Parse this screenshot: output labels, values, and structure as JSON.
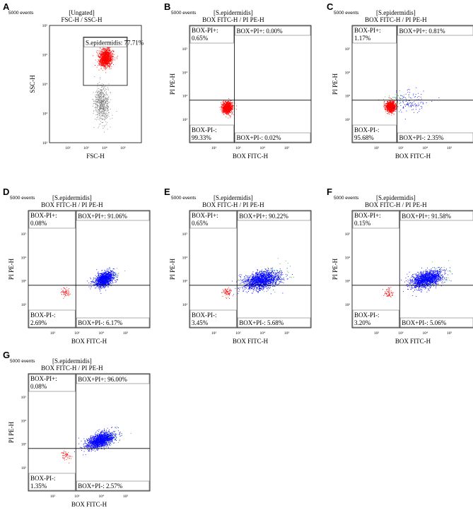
{
  "chart_data": [
    {
      "panel": "A",
      "type": "scatter",
      "events": "5000 events",
      "title1": "[Ungated]",
      "title2": "FSC-H / SSC-H",
      "xlabel": "FSC-H",
      "ylabel": "SSC-H",
      "xlim": [
        10,
        1000000
      ],
      "ylim": [
        100,
        1000000
      ],
      "log": true,
      "xticks": [
        {
          "v": 100,
          "t": "10²"
        },
        {
          "v": 1000,
          "t": "10³"
        },
        {
          "v": 10000,
          "t": "10⁴"
        },
        {
          "v": 100000,
          "t": "10⁵"
        }
      ],
      "yticks": [
        {
          "v": 100,
          "t": "10²"
        },
        {
          "v": 1000,
          "t": "10³"
        },
        {
          "v": 10000,
          "t": "10⁴"
        },
        {
          "v": 100000,
          "t": "10⁵"
        },
        {
          "v": 1000000,
          "t": "10⁶"
        }
      ],
      "gate": {
        "label": "S.epidermidis: 77.71%",
        "x": [
          700,
          170000
        ],
        "y": [
          9000,
          400000
        ]
      },
      "clusters": [
        {
          "color": "#ff0000",
          "n": 1200,
          "cx": 11000,
          "cy": 80000,
          "sx": 0.18,
          "sy": 0.15,
          "rot": 0.5
        },
        {
          "color": "#7f7f7f",
          "n": 600,
          "cx": 7000,
          "cy": 2200,
          "sx": 0.2,
          "sy": 0.3,
          "rot": 0.2
        }
      ]
    },
    {
      "panel": "B",
      "type": "scatter",
      "events": "5000 events",
      "title1": "[S.epidermidis]",
      "title2": "BOX FITC-H / PI PE-H",
      "xlabel": "BOX FITC-H",
      "ylabel": "PI PE-H",
      "xlim": [
        10,
        1000000
      ],
      "ylim": [
        10,
        1000000
      ],
      "log": true,
      "xticks": [
        {
          "v": 100,
          "t": "10²"
        },
        {
          "v": 1000,
          "t": "10³"
        },
        {
          "v": 10000,
          "t": "10⁴"
        },
        {
          "v": 100000,
          "t": "10⁵"
        }
      ],
      "yticks": [
        {
          "v": 100,
          "t": "10²"
        },
        {
          "v": 1000,
          "t": "10³"
        },
        {
          "v": 10000,
          "t": "10⁴"
        },
        {
          "v": 100000,
          "t": "10⁵"
        }
      ],
      "quad": {
        "x": 700,
        "y": 650
      },
      "quadrants": {
        "ul": "BOX-PI+:\n0.65%",
        "ur": "BOX+PI+: 0.00%",
        "ll": "BOX-PI-:\n99.33%",
        "lr": "BOX+PI-: 0.02%"
      },
      "clusters": [
        {
          "color": "#ff0000",
          "n": 1100,
          "cx": 350,
          "cy": 320,
          "sx": 0.1,
          "sy": 0.12,
          "rot": 0
        }
      ]
    },
    {
      "panel": "C",
      "type": "scatter",
      "events": "5000 events",
      "title1": "[S.epidermidis]",
      "title2": "BOX FITC-H / PI PE-H",
      "xlabel": "BOX FITC-H",
      "ylabel": "PI PE-H",
      "xlim": [
        10,
        1000000
      ],
      "ylim": [
        10,
        1000000
      ],
      "log": true,
      "xticks": [
        {
          "v": 100,
          "t": "10²"
        },
        {
          "v": 1000,
          "t": "10³"
        },
        {
          "v": 10000,
          "t": "10⁴"
        },
        {
          "v": 100000,
          "t": "10⁵"
        }
      ],
      "yticks": [
        {
          "v": 100,
          "t": "10²"
        },
        {
          "v": 1000,
          "t": "10³"
        },
        {
          "v": 10000,
          "t": "10⁴"
        },
        {
          "v": 100000,
          "t": "10⁵"
        }
      ],
      "quad": {
        "x": 700,
        "y": 650
      },
      "quadrants": {
        "ul": "BOX-PI+:\n1.17%",
        "ur": "BOX+PI+: 0.81%",
        "ll": "BOX-PI-:\n95.68%",
        "lr": "BOX+PI-: 2.35%"
      },
      "clusters": [
        {
          "color": "#ff0000",
          "n": 1000,
          "cx": 380,
          "cy": 350,
          "sx": 0.1,
          "sy": 0.11,
          "rot": 0
        },
        {
          "color": "#0000ff",
          "n": 120,
          "cx": 2500,
          "cy": 550,
          "sx": 0.35,
          "sy": 0.25,
          "rot": 0
        },
        {
          "color": "#22bb22",
          "n": 30,
          "cx": 600,
          "cy": 750,
          "sx": 0.3,
          "sy": 0.15,
          "rot": 0
        }
      ]
    },
    {
      "panel": "D",
      "type": "scatter",
      "events": "5000 events",
      "title1": "[S.epidermidis]",
      "title2": "BOX FITC-H / PI PE-H",
      "xlabel": "BOX FITC-H",
      "ylabel": "PI PE-H",
      "xlim": [
        10,
        1000000
      ],
      "ylim": [
        10,
        1000000
      ],
      "log": true,
      "xticks": [
        {
          "v": 100,
          "t": "10²"
        },
        {
          "v": 1000,
          "t": "10³"
        },
        {
          "v": 10000,
          "t": "10⁴"
        },
        {
          "v": 100000,
          "t": "10⁵"
        }
      ],
      "yticks": [
        {
          "v": 100,
          "t": "10²"
        },
        {
          "v": 1000,
          "t": "10³"
        },
        {
          "v": 10000,
          "t": "10⁴"
        },
        {
          "v": 100000,
          "t": "10⁵"
        }
      ],
      "quad": {
        "x": 900,
        "y": 650
      },
      "quadrants": {
        "ul": "BOX-PI+:\n0.08%",
        "ur": "BOX+PI+: 91.06%",
        "ll": "BOX-PI-:\n2.69%",
        "lr": "BOX+PI-: 6.17%"
      },
      "clusters": [
        {
          "color": "#0000ff",
          "n": 1300,
          "cx": 13000,
          "cy": 1200,
          "sx": 0.22,
          "sy": 0.14,
          "rot": 0.55
        },
        {
          "color": "#ff0000",
          "n": 60,
          "cx": 330,
          "cy": 330,
          "sx": 0.1,
          "sy": 0.1,
          "rot": 0
        },
        {
          "color": "#22bb22",
          "n": 20,
          "cx": 20000,
          "cy": 1800,
          "sx": 0.4,
          "sy": 0.2,
          "rot": 0.3
        }
      ]
    },
    {
      "panel": "E",
      "type": "scatter",
      "events": "5000 events",
      "title1": "[S.epidermidis]",
      "title2": "BOX FITC-H / PI PE-H",
      "xlabel": "BOX FITC-H",
      "ylabel": "PI PE-H",
      "xlim": [
        10,
        1000000
      ],
      "ylim": [
        10,
        1000000
      ],
      "log": true,
      "xticks": [
        {
          "v": 100,
          "t": "10²"
        },
        {
          "v": 1000,
          "t": "10³"
        },
        {
          "v": 10000,
          "t": "10⁴"
        },
        {
          "v": 100000,
          "t": "10⁵"
        }
      ],
      "yticks": [
        {
          "v": 100,
          "t": "10²"
        },
        {
          "v": 1000,
          "t": "10³"
        },
        {
          "v": 10000,
          "t": "10⁴"
        },
        {
          "v": 100000,
          "t": "10⁵"
        }
      ],
      "quad": {
        "x": 900,
        "y": 650
      },
      "quadrants": {
        "ul": "BOX-PI+:\n0.65%",
        "ur": "BOX+PI+: 90.22%",
        "ll": "BOX-PI-:\n3.45%",
        "lr": "BOX+PI-: 5.68%"
      },
      "clusters": [
        {
          "color": "#0000ff",
          "n": 1600,
          "cx": 9000,
          "cy": 1100,
          "sx": 0.38,
          "sy": 0.18,
          "rot": 0.25
        },
        {
          "color": "#ff0000",
          "n": 70,
          "cx": 330,
          "cy": 330,
          "sx": 0.1,
          "sy": 0.1,
          "rot": 0
        },
        {
          "color": "#22bb22",
          "n": 40,
          "cx": 30000,
          "cy": 1700,
          "sx": 0.45,
          "sy": 0.25,
          "rot": 0.2
        }
      ]
    },
    {
      "panel": "F",
      "type": "scatter",
      "events": "5000 events",
      "title1": "[S.epidermidis]",
      "title2": "BOX FITC-H / PI PE-H",
      "xlabel": "BOX FITC-H",
      "ylabel": "PI PE-H",
      "xlim": [
        10,
        1000000
      ],
      "ylim": [
        10,
        1000000
      ],
      "log": true,
      "xticks": [
        {
          "v": 100,
          "t": "10²"
        },
        {
          "v": 1000,
          "t": "10³"
        },
        {
          "v": 10000,
          "t": "10⁴"
        },
        {
          "v": 100000,
          "t": "10⁵"
        }
      ],
      "yticks": [
        {
          "v": 100,
          "t": "10²"
        },
        {
          "v": 1000,
          "t": "10³"
        },
        {
          "v": 10000,
          "t": "10⁴"
        },
        {
          "v": 100000,
          "t": "10⁵"
        }
      ],
      "quad": {
        "x": 900,
        "y": 650
      },
      "quadrants": {
        "ul": "BOX-PI+:\n0.15%",
        "ur": "BOX+PI+: 91.58%",
        "ll": "BOX-PI-:\n3.20%",
        "lr": "BOX+PI-: 5.06%"
      },
      "clusters": [
        {
          "color": "#0000ff",
          "n": 1600,
          "cx": 11000,
          "cy": 1200,
          "sx": 0.34,
          "sy": 0.16,
          "rot": 0.3
        },
        {
          "color": "#ff0000",
          "n": 60,
          "cx": 330,
          "cy": 330,
          "sx": 0.1,
          "sy": 0.1,
          "rot": 0
        },
        {
          "color": "#22bb22",
          "n": 30,
          "cx": 40000,
          "cy": 2000,
          "sx": 0.4,
          "sy": 0.25,
          "rot": 0.3
        }
      ]
    },
    {
      "panel": "G",
      "type": "scatter",
      "events": "5000 events",
      "title1": "[S.epidermidis]",
      "title2": "BOX FITC-H / PI PE-H",
      "xlabel": "BOX FITC-H",
      "ylabel": "PI PE-H",
      "xlim": [
        10,
        1000000
      ],
      "ylim": [
        10,
        1000000
      ],
      "log": true,
      "xticks": [
        {
          "v": 100,
          "t": "10²"
        },
        {
          "v": 1000,
          "t": "10³"
        },
        {
          "v": 10000,
          "t": "10⁴"
        },
        {
          "v": 100000,
          "t": "10⁵"
        }
      ],
      "yticks": [
        {
          "v": 100,
          "t": "10²"
        },
        {
          "v": 1000,
          "t": "10³"
        },
        {
          "v": 10000,
          "t": "10⁴"
        },
        {
          "v": 100000,
          "t": "10⁵"
        }
      ],
      "quad": {
        "x": 900,
        "y": 650
      },
      "quadrants": {
        "ul": "BOX-PI+:\n0.08%",
        "ur": "BOX+PI+: 96.00%",
        "ll": "BOX-PI-:\n1.35%",
        "lr": "BOX+PI-: 2.57%"
      },
      "clusters": [
        {
          "color": "#0000ff",
          "n": 1600,
          "cx": 9000,
          "cy": 1500,
          "sx": 0.3,
          "sy": 0.14,
          "rot": 0.4
        },
        {
          "color": "#ff0000",
          "n": 50,
          "cx": 330,
          "cy": 330,
          "sx": 0.1,
          "sy": 0.1,
          "rot": 0
        },
        {
          "color": "#22bb22",
          "n": 25,
          "cx": 30000,
          "cy": 2300,
          "sx": 0.35,
          "sy": 0.2,
          "rot": 0.3
        }
      ]
    }
  ]
}
